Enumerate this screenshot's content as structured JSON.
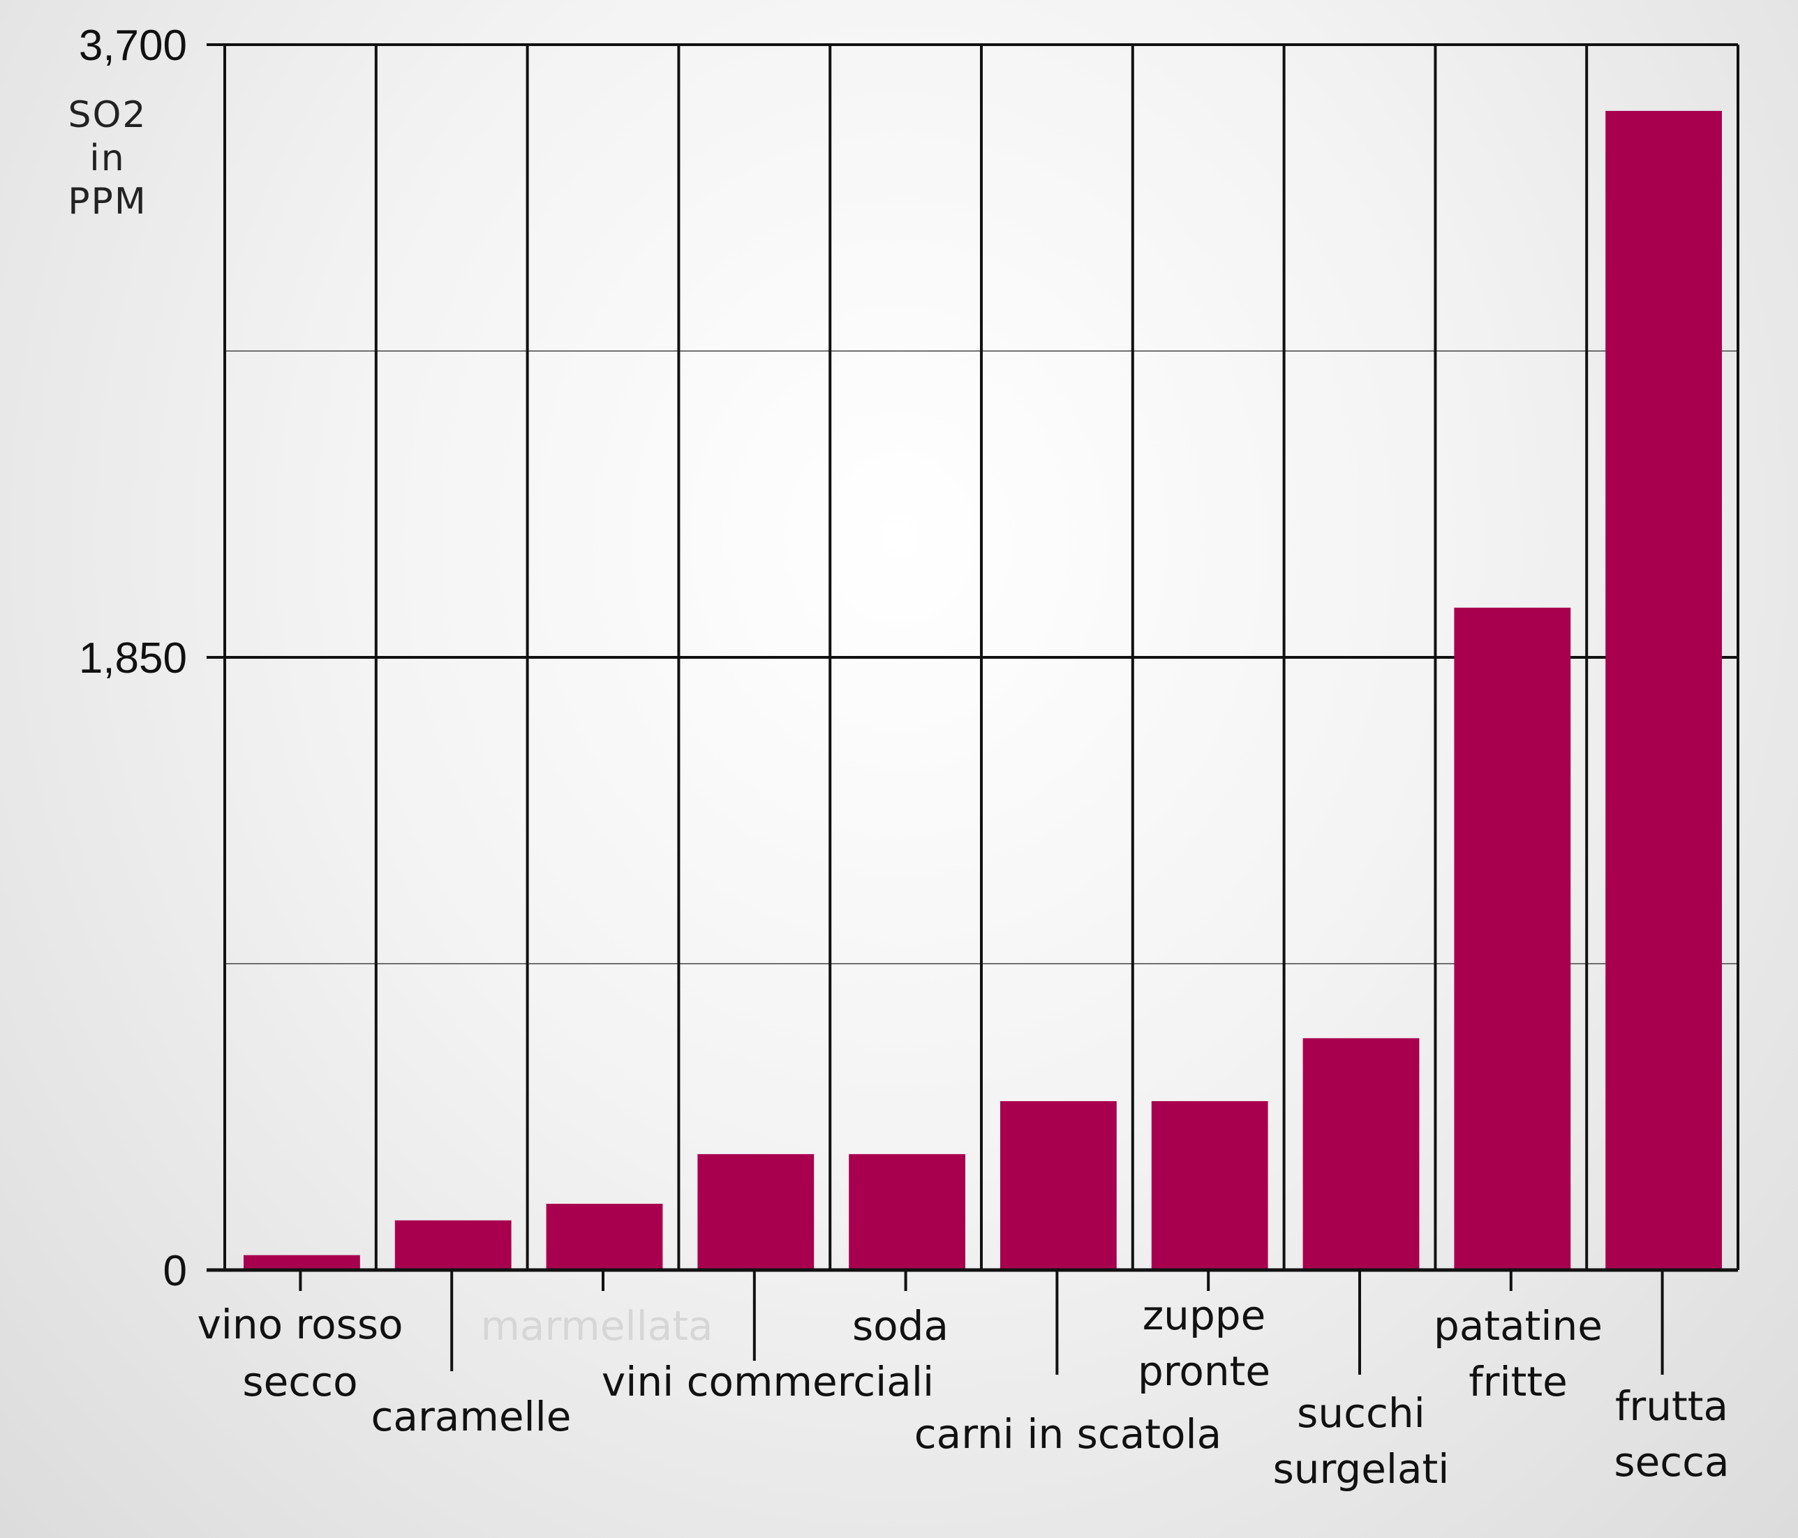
{
  "chart_data": {
    "type": "bar",
    "ylabel": [
      "SO2",
      "in",
      "PPM"
    ],
    "ylim": [
      0,
      3700
    ],
    "yticks": [
      {
        "value": 0,
        "label": "0"
      },
      {
        "value": 1850,
        "label": "1,850"
      },
      {
        "value": 3700,
        "label": "3,700"
      }
    ],
    "minor_gridlines": [
      925,
      2775
    ],
    "grid": true,
    "bar_color": "#a8004e",
    "categories": [
      {
        "label": [
          "vino rosso",
          "secco"
        ],
        "value": 45
      },
      {
        "label": [
          "caramelle"
        ],
        "value": 150
      },
      {
        "label": [
          "marmellata"
        ],
        "value": 200,
        "faded": true
      },
      {
        "label": [
          "vini commerciali"
        ],
        "value": 350
      },
      {
        "label": [
          "soda"
        ],
        "value": 350
      },
      {
        "label": [
          "carni in scatola"
        ],
        "value": 510
      },
      {
        "label": [
          "zuppe",
          "pronte"
        ],
        "value": 510
      },
      {
        "label": [
          "succhi",
          "surgelati"
        ],
        "value": 700
      },
      {
        "label": [
          "patatine",
          "fritte"
        ],
        "value": 2000
      },
      {
        "label": [
          "frutta",
          "secca"
        ],
        "value": 3500
      }
    ]
  }
}
